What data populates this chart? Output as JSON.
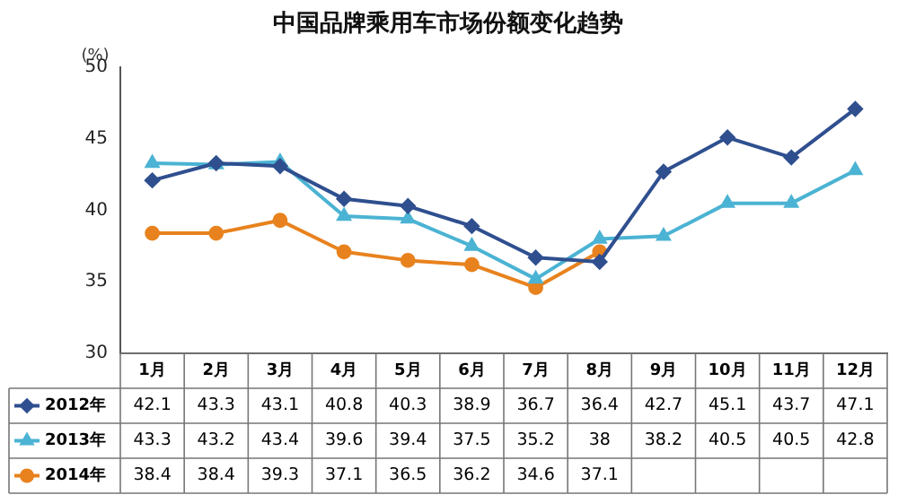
{
  "chart_data": {
    "type": "line",
    "title": "中国品牌乘用车市场份额变化趋势",
    "ylabel": "(%)",
    "categories": [
      "1月",
      "2月",
      "3月",
      "4月",
      "5月",
      "6月",
      "7月",
      "8月",
      "9月",
      "10月",
      "11月",
      "12月"
    ],
    "series": [
      {
        "name": "2012年",
        "color": "#2f4f8f",
        "marker": "diamond",
        "values": [
          42.1,
          43.3,
          43.1,
          40.8,
          40.3,
          38.9,
          36.7,
          36.4,
          42.7,
          45.1,
          43.7,
          47.1
        ]
      },
      {
        "name": "2013年",
        "color": "#4bb3d3",
        "marker": "triangle",
        "values": [
          43.3,
          43.2,
          43.4,
          39.6,
          39.4,
          37.5,
          35.2,
          38,
          38.2,
          40.5,
          40.5,
          42.8
        ]
      },
      {
        "name": "2014年",
        "color": "#e8821e",
        "marker": "circle",
        "values": [
          38.4,
          38.4,
          39.3,
          37.1,
          36.5,
          36.2,
          34.6,
          37.1,
          null,
          null,
          null,
          null
        ]
      }
    ],
    "ylim": [
      30,
      50
    ],
    "yticks": [
      30,
      35,
      40,
      45,
      50
    ],
    "grid": false,
    "legend": "bottom",
    "data_labels": true,
    "line_style": "solid"
  }
}
